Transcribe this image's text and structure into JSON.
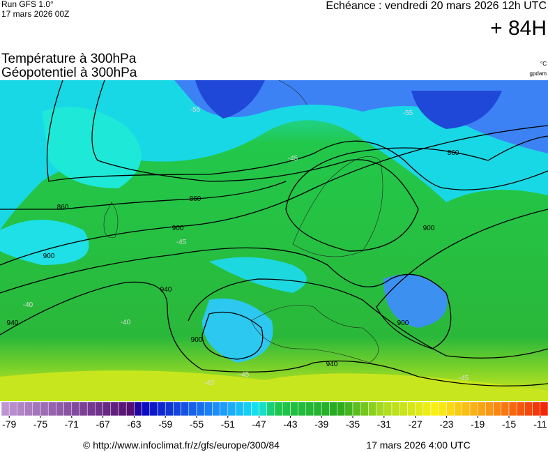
{
  "header": {
    "model": "Run GFS 1.0°",
    "run": "17 mars 2026 00Z",
    "echeance": "Echéance : vendredi 20 mars 2026 12h UTC",
    "lead": "+ 84H",
    "title_temp": "Température à 300hPa",
    "title_geo": "Géopotentiel à 300hPa",
    "unit_temp": "°C",
    "unit_geo": "gpdam"
  },
  "map": {
    "contour_labels": [
      "860",
      "860",
      "860",
      "900",
      "900",
      "900",
      "900",
      "940",
      "940",
      "940",
      "900",
      "-45",
      "-45",
      "-45",
      "-40",
      "-40",
      "-45",
      "-55",
      "-55",
      "-45"
    ]
  },
  "colorbar": {
    "ticks": [
      -79,
      -75,
      -71,
      -67,
      -63,
      -59,
      -55,
      -51,
      -47,
      -43,
      -39,
      -35,
      -31,
      -27,
      -23,
      -19,
      -15,
      -11
    ]
  },
  "footer": {
    "url": "© http://www.infoclimat.fr/z/gfs/europe/300/84",
    "date": "17 mars 2026  4:00 UTC"
  }
}
